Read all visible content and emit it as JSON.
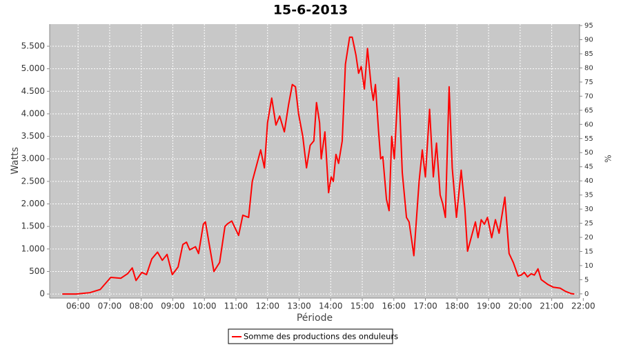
{
  "chart_data": {
    "type": "line",
    "title": "15-6-2013",
    "x_label": "Période",
    "y_label": "Watts",
    "y2_label": "%",
    "x": [
      "05:30",
      "05:56",
      "06:22",
      "06:42",
      "07:02",
      "07:21",
      "07:34",
      "07:43",
      "07:50",
      "08:01",
      "08:10",
      "08:20",
      "08:31",
      "08:40",
      "08:49",
      "08:59",
      "09:10",
      "09:19",
      "09:26",
      "09:32",
      "09:43",
      "09:49",
      "09:58",
      "10:02",
      "10:18",
      "10:29",
      "10:39",
      "10:44",
      "10:52",
      "11:05",
      "11:13",
      "11:24",
      "11:31",
      "11:47",
      "11:54",
      "12:00",
      "12:08",
      "12:16",
      "12:23",
      "12:32",
      "12:40",
      "12:47",
      "12:53",
      "12:59",
      "13:07",
      "13:14",
      "13:21",
      "13:28",
      "13:33",
      "13:39",
      "13:42",
      "13:49",
      "13:56",
      "14:01",
      "14:05",
      "14:10",
      "14:15",
      "14:22",
      "14:28",
      "14:36",
      "14:41",
      "14:48",
      "14:53",
      "14:58",
      "15:04",
      "15:10",
      "15:17",
      "15:21",
      "15:25",
      "15:31",
      "15:35",
      "15:39",
      "15:46",
      "15:51",
      "15:56",
      "16:01",
      "16:09",
      "16:16",
      "16:24",
      "16:29",
      "16:38",
      "16:48",
      "16:54",
      "17:00",
      "17:08",
      "17:15",
      "17:21",
      "17:28",
      "17:33",
      "17:38",
      "17:45",
      "17:51",
      "17:59",
      "18:08",
      "18:15",
      "18:20",
      "18:28",
      "18:35",
      "18:40",
      "18:46",
      "18:52",
      "18:58",
      "19:06",
      "19:13",
      "19:20",
      "19:31",
      "19:39",
      "19:47",
      "19:56",
      "20:02",
      "20:08",
      "20:14",
      "20:21",
      "20:27",
      "20:34",
      "20:40",
      "20:53",
      "21:03",
      "21:16",
      "21:26",
      "21:37",
      "21:43"
    ],
    "series": [
      {
        "name": "Somme des productions des onduleurs",
        "color": "#ff0000",
        "values": [
          0,
          0,
          30,
          100,
          370,
          350,
          450,
          580,
          300,
          480,
          430,
          780,
          930,
          750,
          880,
          430,
          600,
          1100,
          1150,
          980,
          1050,
          900,
          1550,
          1600,
          500,
          700,
          1500,
          1560,
          1620,
          1300,
          1750,
          1700,
          2500,
          3200,
          2800,
          3800,
          4350,
          3750,
          3950,
          3600,
          4200,
          4650,
          4600,
          4000,
          3500,
          2800,
          3300,
          3400,
          4250,
          3800,
          3000,
          3600,
          2250,
          2600,
          2500,
          3100,
          2900,
          3400,
          5100,
          5700,
          5700,
          5300,
          4900,
          5050,
          4550,
          5450,
          4600,
          4300,
          4650,
          3600,
          3000,
          3050,
          2100,
          1850,
          3500,
          3000,
          4800,
          2700,
          1700,
          1600,
          850,
          2500,
          3200,
          2600,
          4100,
          2600,
          3350,
          2200,
          2000,
          1700,
          4600,
          2800,
          1700,
          2750,
          1900,
          950,
          1300,
          1600,
          1250,
          1650,
          1550,
          1700,
          1250,
          1650,
          1350,
          2150,
          900,
          700,
          400,
          420,
          480,
          380,
          450,
          420,
          560,
          320,
          210,
          150,
          130,
          60,
          10,
          0
        ]
      }
    ],
    "xlim": [
      "05:06",
      "21:53"
    ],
    "xticks": [
      "06:00",
      "07:00",
      "08:00",
      "09:00",
      "10:00",
      "11:00",
      "12:00",
      "13:00",
      "14:00",
      "15:00",
      "16:00",
      "17:00",
      "18:00",
      "19:00",
      "20:00",
      "21:00",
      "22:00"
    ],
    "ylim": [
      -90,
      5990
    ],
    "yticks": [
      0,
      500,
      {
        "value": 1000,
        "label": "1.000"
      },
      {
        "value": 1500,
        "label": "1.500"
      },
      {
        "value": 2000,
        "label": "2.000"
      },
      {
        "value": 2500,
        "label": "2.500"
      },
      {
        "value": 3000,
        "label": "3.000"
      },
      {
        "value": 3500,
        "label": "3.500"
      },
      {
        "value": 4000,
        "label": "4.000"
      },
      {
        "value": 4500,
        "label": "4.500"
      },
      {
        "value": 5000,
        "label": "5.000"
      },
      {
        "value": 5500,
        "label": "5.500"
      }
    ],
    "y2lim": [
      -1.5,
      95.5
    ],
    "y2ticks": [
      0,
      5,
      10,
      15,
      20,
      25,
      30,
      35,
      40,
      45,
      50,
      55,
      60,
      65,
      70,
      75,
      80,
      85,
      90,
      95
    ],
    "grid": true,
    "legend": "bottom"
  }
}
